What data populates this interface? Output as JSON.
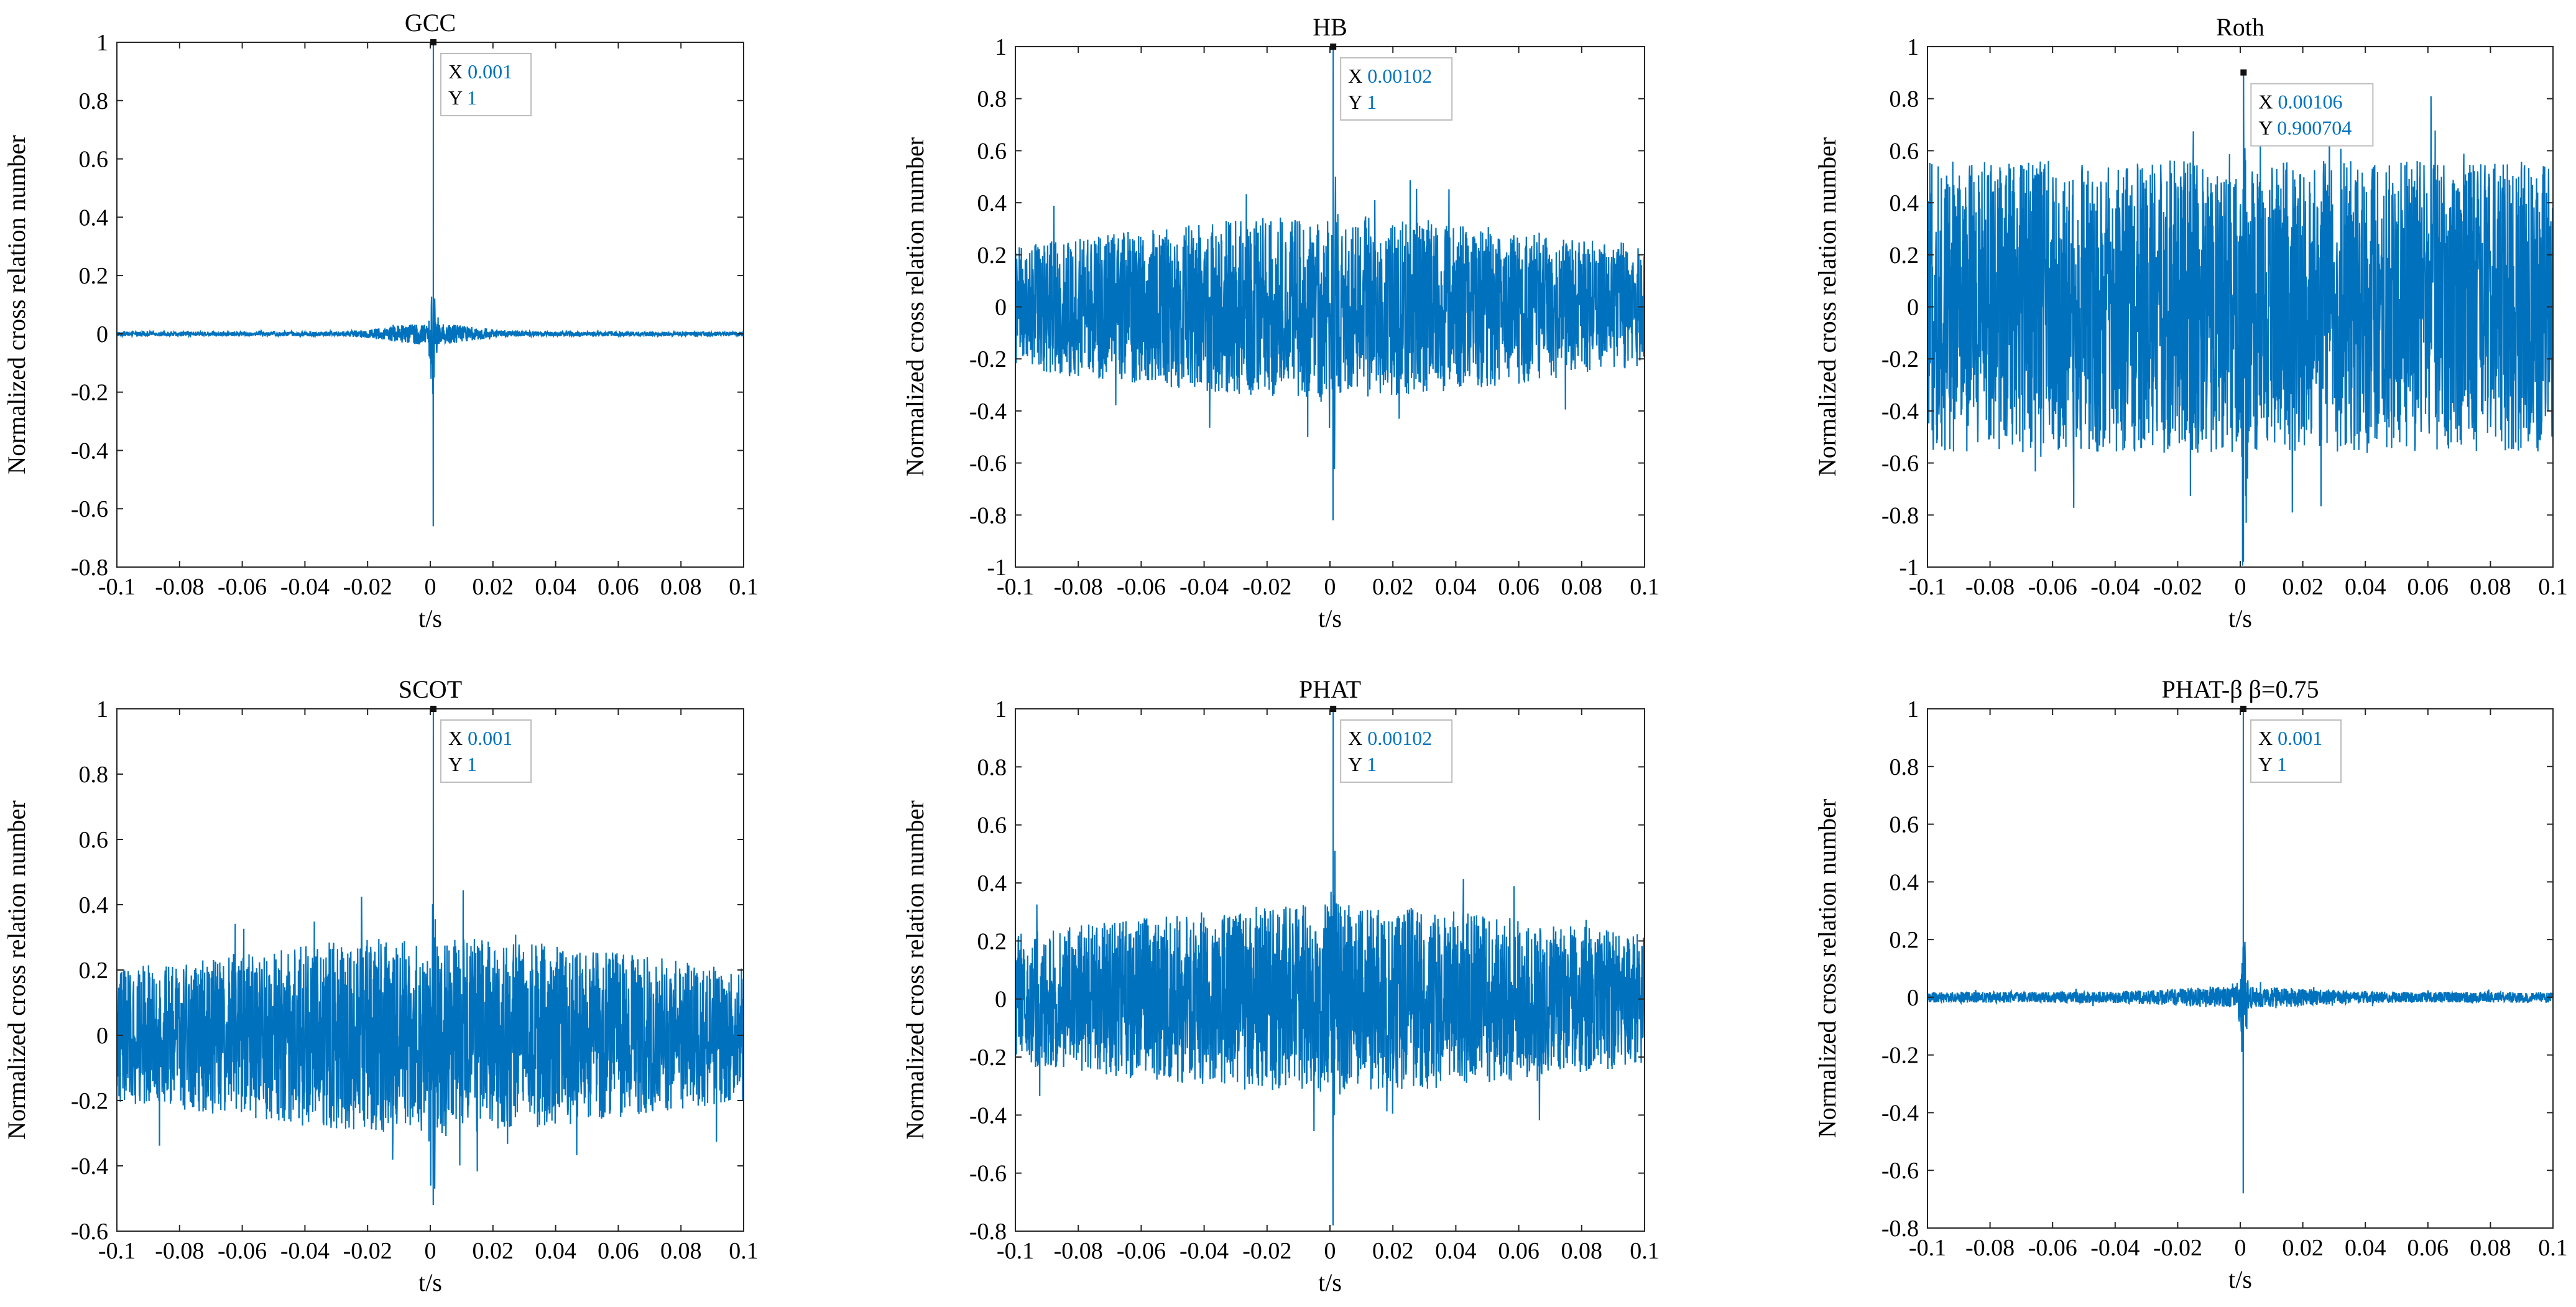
{
  "chart_data": [
    {
      "type": "line",
      "title": "GCC",
      "xlabel": "t/s",
      "ylabel": "Normalized cross relation number",
      "xlim": [
        -0.1,
        0.1
      ],
      "ylim": [
        -0.8,
        1
      ],
      "xticks": [
        "-0.1",
        "-0.08",
        "-0.06",
        "-0.04",
        "-0.02",
        "0",
        "0.02",
        "0.04",
        "0.06",
        "0.08",
        "0.1"
      ],
      "yticks": [
        "-0.8",
        "-0.6",
        "-0.4",
        "-0.2",
        "0",
        "0.2",
        "0.4",
        "0.6",
        "0.8",
        "1"
      ],
      "series_color": "#0072BD",
      "noise_edge": 0.006,
      "noise_center": 0.03,
      "envelope_width": 0.012,
      "spike_x": 0.001,
      "spike_y": 1,
      "spike_min": -0.66,
      "shoulder": 0.2,
      "datatip": {
        "x_label": "X",
        "x": "0.001",
        "y_label": "Y",
        "y": "1"
      },
      "grid": false
    },
    {
      "type": "line",
      "title": "HB",
      "xlabel": "t/s",
      "ylabel": "Normalized cross relation number",
      "xlim": [
        -0.1,
        0.1
      ],
      "ylim": [
        -1,
        1
      ],
      "xticks": [
        "-0.1",
        "-0.08",
        "-0.06",
        "-0.04",
        "-0.02",
        "0",
        "0.02",
        "0.04",
        "0.06",
        "0.08",
        "0.1"
      ],
      "yticks": [
        "-1",
        "-0.8",
        "-0.6",
        "-0.4",
        "-0.2",
        "0",
        "0.2",
        "0.4",
        "0.6",
        "0.8",
        "1"
      ],
      "series_color": "#0072BD",
      "noise_edge": 0.14,
      "noise_center": 0.28,
      "envelope_width": 0.07,
      "spike_x": 0.00102,
      "spike_y": 1,
      "spike_min": -0.82,
      "shoulder": 0.53,
      "datatip": {
        "x_label": "X",
        "x": "0.00102",
        "y_label": "Y",
        "y": "1"
      },
      "grid": false
    },
    {
      "type": "line",
      "title": "Roth",
      "xlabel": "t/s",
      "ylabel": "Normalized cross relation number",
      "xlim": [
        -0.1,
        0.1
      ],
      "ylim": [
        -1,
        1
      ],
      "xticks": [
        "-0.1",
        "-0.08",
        "-0.06",
        "-0.04",
        "-0.02",
        "0",
        "0.02",
        "0.04",
        "0.06",
        "0.08",
        "0.1"
      ],
      "yticks": [
        "-1",
        "-0.8",
        "-0.6",
        "-0.4",
        "-0.2",
        "0",
        "0.2",
        "0.4",
        "0.6",
        "0.8",
        "1"
      ],
      "series_color": "#0072BD",
      "noise_edge": 0.42,
      "noise_center": 0.45,
      "envelope_width": 0.2,
      "spike_x": 0.00106,
      "spike_y": 0.900704,
      "spike_min": -0.98,
      "shoulder": 0.6,
      "datatip": {
        "x_label": "X",
        "x": "0.00106",
        "y_label": "Y",
        "y": "0.900704"
      },
      "grid": false
    },
    {
      "type": "line",
      "title": "SCOT",
      "xlabel": "t/s",
      "ylabel": "Normalized cross relation number",
      "xlim": [
        -0.1,
        0.1
      ],
      "ylim": [
        -0.6,
        1
      ],
      "xticks": [
        "-0.1",
        "-0.08",
        "-0.06",
        "-0.04",
        "-0.02",
        "0",
        "0.02",
        "0.04",
        "0.06",
        "0.08",
        "0.1"
      ],
      "yticks": [
        "-0.6",
        "-0.4",
        "-0.2",
        "0",
        "0.2",
        "0.4",
        "0.6",
        "0.8",
        "1"
      ],
      "series_color": "#0072BD",
      "noise_edge": 0.12,
      "noise_center": 0.24,
      "envelope_width": 0.07,
      "spike_x": 0.001,
      "spike_y": 1,
      "spike_min": -0.52,
      "shoulder": 0.4,
      "datatip": {
        "x_label": "X",
        "x": "0.001",
        "y_label": "Y",
        "y": "1"
      },
      "grid": false
    },
    {
      "type": "line",
      "title": "PHAT",
      "xlabel": "t/s",
      "ylabel": "Normalized cross relation number",
      "xlim": [
        -0.1,
        0.1
      ],
      "ylim": [
        -0.8,
        1
      ],
      "xticks": [
        "-0.1",
        "-0.08",
        "-0.06",
        "-0.04",
        "-0.02",
        "0",
        "0.02",
        "0.04",
        "0.06",
        "0.08",
        "0.1"
      ],
      "yticks": [
        "-0.8",
        "-0.6",
        "-0.4",
        "-0.2",
        "0",
        "0.2",
        "0.4",
        "0.6",
        "0.8",
        "1"
      ],
      "series_color": "#0072BD",
      "noise_edge": 0.14,
      "noise_center": 0.26,
      "envelope_width": 0.07,
      "spike_x": 0.00102,
      "spike_y": 1,
      "spike_min": -0.78,
      "shoulder": 0.37,
      "datatip": {
        "x_label": "X",
        "x": "0.00102",
        "y_label": "Y",
        "y": "1"
      },
      "grid": false
    },
    {
      "type": "line",
      "title": "PHAT-β   β=0.75",
      "xlabel": "t/s",
      "ylabel": "Normalized cross relation number",
      "xlim": [
        -0.1,
        0.1
      ],
      "ylim": [
        -0.8,
        1
      ],
      "xticks": [
        "-0.1",
        "-0.08",
        "-0.06",
        "-0.04",
        "-0.02",
        "0",
        "0.02",
        "0.04",
        "0.06",
        "0.08",
        "0.1"
      ],
      "yticks": [
        "-0.8",
        "-0.6",
        "-0.4",
        "-0.2",
        "0",
        "0.2",
        "0.4",
        "0.6",
        "0.8",
        "1"
      ],
      "series_color": "#0072BD",
      "noise_edge": 0.015,
      "noise_center": 0.03,
      "envelope_width": 0.02,
      "spike_x": 0.001,
      "spike_y": 1,
      "spike_min": -0.68,
      "shoulder": 0.22,
      "datatip": {
        "x_label": "X",
        "x": "0.001",
        "y_label": "Y",
        "y": "1"
      },
      "grid": false
    }
  ]
}
